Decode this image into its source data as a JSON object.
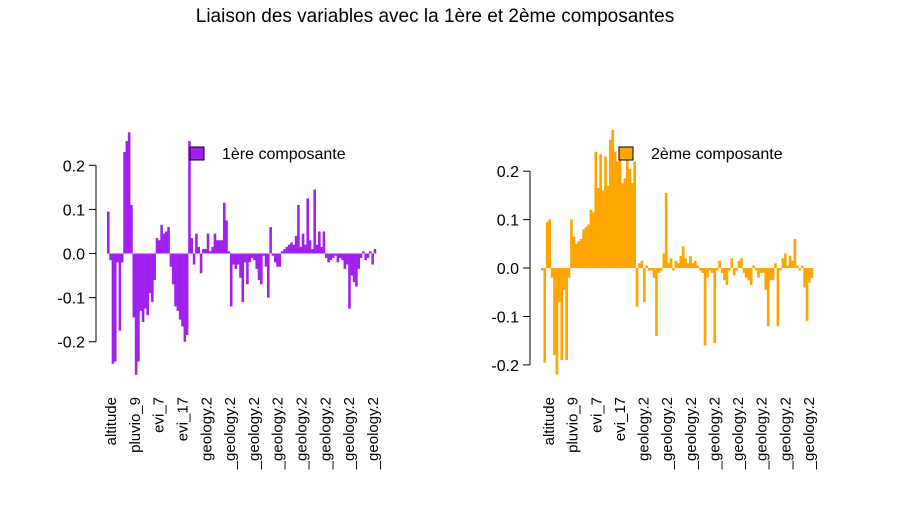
{
  "title": "Liaison des variables avec la 1ère et 2ème composantes",
  "chart_data": [
    {
      "type": "bar",
      "legend": "1ère composante",
      "color": "#A020F0",
      "ylim": [
        -0.28,
        0.28
      ],
      "yticks": [
        -0.2,
        -0.1,
        0.0,
        0.1,
        0.2
      ],
      "ytick_labels": [
        "-0.2",
        "-0.1",
        "0.0",
        "0.1",
        "0.2"
      ],
      "xtick_labels": [
        "altitude",
        "pluvio_9",
        "evi_7",
        "evi_17",
        "geology.2",
        "_geology.2",
        "_geology.2",
        "_geology.2",
        "_geology.2",
        "_geology.2",
        "_geology.2",
        "_geology.2"
      ],
      "values": [
        0.095,
        -0.015,
        -0.25,
        -0.245,
        -0.02,
        -0.175,
        -0.02,
        0.23,
        0.255,
        0.275,
        0.11,
        -0.145,
        -0.275,
        -0.245,
        -0.13,
        -0.155,
        -0.125,
        -0.14,
        -0.09,
        -0.11,
        -0.06,
        0.035,
        0.03,
        0.065,
        0.045,
        0.05,
        0.06,
        -0.03,
        -0.07,
        -0.12,
        -0.13,
        -0.15,
        -0.165,
        -0.2,
        -0.185,
        0.255,
        0.035,
        -0.025,
        0.045,
        0.015,
        -0.045,
        0.01,
        0.01,
        0.045,
        0.005,
        0.015,
        0.045,
        0.03,
        0.03,
        0.03,
        0.115,
        0.075,
        0.005,
        -0.12,
        -0.025,
        -0.035,
        -0.025,
        -0.055,
        -0.11,
        -0.02,
        -0.07,
        -0.02,
        -0.01,
        -0.015,
        -0.035,
        -0.06,
        -0.07,
        -0.005,
        -0.03,
        -0.1,
        0.06,
        -0.005,
        -0.02,
        -0.03,
        -0.03,
        0.005,
        0.01,
        0.015,
        0.02,
        0.025,
        0.02,
        0.04,
        0.11,
        0.015,
        0.045,
        0.02,
        0.125,
        0.03,
        0.01,
        0.145,
        0.02,
        0.05,
        0.015,
        0.05,
        -0.01,
        -0.02,
        -0.015,
        -0.01,
        -0.005,
        -0.02,
        -0.01,
        -0.015,
        -0.035,
        -0.025,
        -0.125,
        -0.05,
        -0.065,
        -0.075,
        -0.035,
        -0.01,
        0.005,
        -0.015,
        -0.01,
        0.005,
        -0.025,
        0.01
      ]
    },
    {
      "type": "bar",
      "legend": "2ème composante",
      "color": "#FFA500",
      "ylim": [
        -0.225,
        0.285
      ],
      "yticks": [
        -0.2,
        -0.1,
        0.0,
        0.1,
        0.2
      ],
      "ytick_labels": [
        "-0.2",
        "-0.1",
        "0.0",
        "0.1",
        "0.2"
      ],
      "xtick_labels": [
        "altitude",
        "pluvio_9",
        "evi_7",
        "evi_17",
        "geology.2",
        "_geology.2",
        "_geology.2",
        "_geology.2",
        "_geology.2",
        "_geology.2",
        "_geology.2",
        "_geology.2"
      ],
      "values": [
        -0.005,
        -0.195,
        0.095,
        0.1,
        -0.02,
        -0.18,
        -0.22,
        -0.07,
        -0.19,
        -0.045,
        -0.19,
        -0.02,
        0.1,
        0.065,
        0.05,
        0.055,
        0.06,
        0.08,
        0.085,
        0.09,
        0.12,
        0.115,
        0.24,
        0.165,
        0.235,
        0.16,
        0.23,
        0.17,
        0.265,
        0.285,
        0.24,
        0.22,
        0.235,
        0.175,
        0.185,
        0.235,
        0.205,
        0.175,
        0.22,
        -0.08,
        0.01,
        0.015,
        -0.07,
        0.005,
        -0.005,
        -0.005,
        -0.02,
        -0.14,
        -0.01,
        -0.005,
        0.03,
        0.155,
        0.01,
        0.02,
        -0.005,
        0.015,
        0.01,
        0.025,
        0.045,
        0.02,
        0.01,
        0.025,
        0.01,
        0.015,
        0.005,
        -0.005,
        -0.01,
        -0.16,
        -0.02,
        -0.005,
        -0.01,
        -0.155,
        -0.005,
        0.015,
        -0.01,
        -0.025,
        -0.035,
        -0.005,
        0.02,
        -0.015,
        -0.005,
        0.015,
        0.02,
        -0.01,
        -0.02,
        -0.025,
        -0.035,
        0.005,
        -0.005,
        -0.02,
        -0.01,
        -0.01,
        -0.045,
        -0.12,
        -0.025,
        -0.025,
        0.01,
        -0.12,
        -0.005,
        0.02,
        0.03,
        0.005,
        0.025,
        0.015,
        0.06,
        0.005,
        -0.005,
        0.005,
        -0.04,
        -0.11,
        -0.03,
        -0.02
      ]
    }
  ]
}
